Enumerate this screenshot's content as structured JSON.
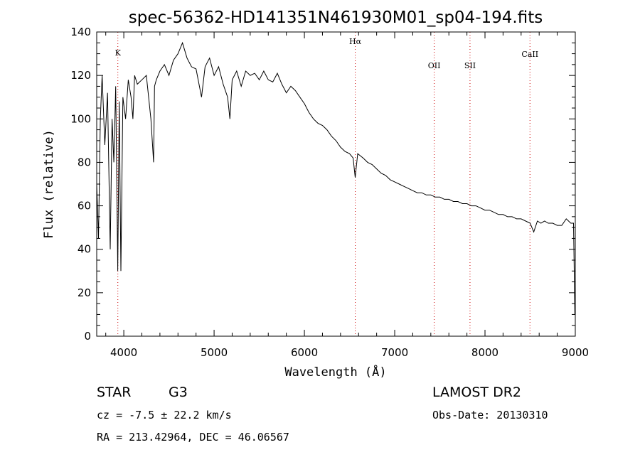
{
  "chart_data": {
    "type": "line",
    "title": "spec-56362-HD141351N461930M01_sp04-194.fits",
    "xlabel": "Wavelength (Å)",
    "ylabel": "Flux (relative)",
    "xlim": [
      3700,
      9000
    ],
    "ylim": [
      0,
      140
    ],
    "xticks": [
      4000,
      5000,
      6000,
      7000,
      8000,
      9000
    ],
    "yticks": [
      0,
      20,
      40,
      60,
      80,
      100,
      120,
      140
    ],
    "grid": false,
    "series": [
      {
        "color": "#000000",
        "x": [
          3700,
          3720,
          3740,
          3760,
          3790,
          3820,
          3850,
          3870,
          3890,
          3910,
          3933,
          3950,
          3968,
          3990,
          4020,
          4050,
          4080,
          4101,
          4120,
          4150,
          4200,
          4250,
          4300,
          4330,
          4340,
          4360,
          4400,
          4450,
          4500,
          4550,
          4600,
          4650,
          4700,
          4750,
          4800,
          4861,
          4900,
          4950,
          5000,
          5050,
          5100,
          5150,
          5175,
          5200,
          5250,
          5300,
          5350,
          5400,
          5450,
          5500,
          5550,
          5600,
          5650,
          5700,
          5750,
          5800,
          5850,
          5900,
          5950,
          6000,
          6050,
          6100,
          6150,
          6200,
          6250,
          6300,
          6350,
          6400,
          6450,
          6500,
          6540,
          6563,
          6590,
          6650,
          6700,
          6750,
          6800,
          6850,
          6900,
          6950,
          7000,
          7050,
          7100,
          7150,
          7200,
          7250,
          7300,
          7350,
          7400,
          7450,
          7500,
          7550,
          7600,
          7650,
          7700,
          7750,
          7800,
          7850,
          7900,
          7950,
          8000,
          8050,
          8100,
          8150,
          8200,
          8250,
          8300,
          8350,
          8400,
          8450,
          8500,
          8540,
          8580,
          8620,
          8660,
          8700,
          8750,
          8800,
          8850,
          8900,
          8950,
          8980,
          8995,
          9000
        ],
        "y": [
          70,
          45,
          100,
          120,
          88,
          112,
          40,
          100,
          80,
          115,
          30,
          108,
          30,
          110,
          100,
          118,
          110,
          100,
          120,
          116,
          118,
          120,
          100,
          80,
          115,
          118,
          122,
          125,
          120,
          127,
          130,
          135,
          128,
          124,
          123,
          110,
          124,
          128,
          120,
          124,
          116,
          110,
          100,
          118,
          122,
          115,
          122,
          120,
          121,
          118,
          122,
          118,
          117,
          121,
          116,
          112,
          115,
          113,
          110,
          107,
          103,
          100,
          98,
          97,
          95,
          92,
          90,
          87,
          85,
          84,
          82,
          73,
          84,
          82,
          80,
          79,
          77,
          75,
          74,
          72,
          71,
          70,
          69,
          68,
          67,
          66,
          66,
          65,
          65,
          64,
          64,
          63,
          63,
          62,
          62,
          61,
          61,
          60,
          60,
          59,
          58,
          58,
          57,
          56,
          56,
          55,
          55,
          54,
          54,
          53,
          52,
          48,
          53,
          52,
          53,
          52,
          52,
          51,
          51,
          54,
          52,
          52,
          10,
          10
        ]
      }
    ],
    "annotations": [
      {
        "label": "K",
        "x": 3934
      },
      {
        "label": "Hα",
        "x": 6563
      },
      {
        "label": "OII",
        "x": 7438
      },
      {
        "label": "SII",
        "x": 7834
      },
      {
        "label": "CaII",
        "x": 8498
      }
    ]
  },
  "info": {
    "object_class": "STAR",
    "subclass": "G3",
    "survey": "LAMOST DR2",
    "cz": "cz = -7.5 ± 22.2 km/s",
    "obs_date": "Obs-Date: 20130310",
    "coords": "RA = 213.42964, DEC =  46.06567"
  }
}
